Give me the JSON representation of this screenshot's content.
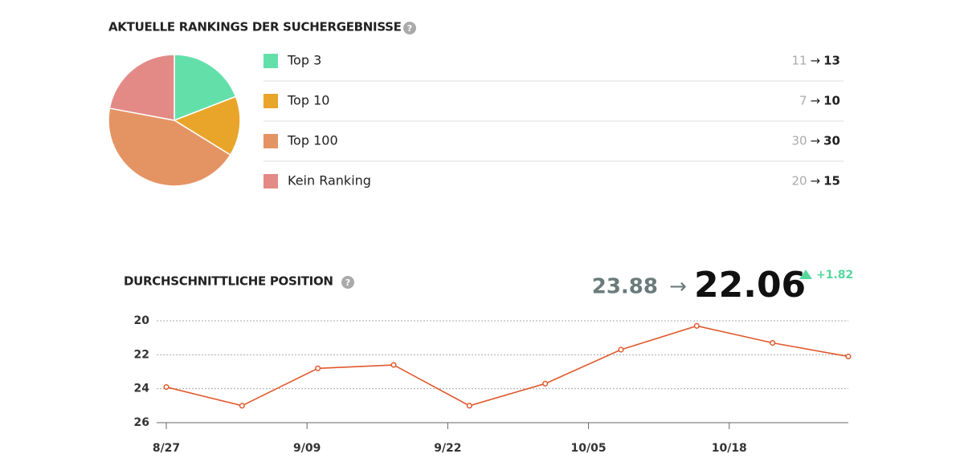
{
  "help_icon": "?",
  "arrow": "→",
  "chart_data": [
    {
      "type": "pie",
      "title": "AKTUELLE RANKINGS DER SUCHERGEBNISSE",
      "categories": [
        "Top 3",
        "Top 10",
        "Top 100",
        "Kein Ranking"
      ],
      "previous": [
        11,
        7,
        30,
        20
      ],
      "values": [
        13,
        10,
        30,
        15
      ],
      "colors": [
        "#63e0aa",
        "#e9a52a",
        "#e49463",
        "#e38a87"
      ]
    },
    {
      "type": "line",
      "title": "DURCHSCHNITTLICHE POSITION",
      "previous": 23.88,
      "current": 22.06,
      "change": "+1.82",
      "x": [
        "8/27",
        "9/03",
        "9/10",
        "9/17",
        "9/24",
        "10/01",
        "10/08",
        "10/15",
        "10/22",
        "10/29"
      ],
      "series": [
        {
          "color": "#e0582b",
          "values": [
            23.9,
            25.0,
            22.8,
            22.6,
            25.0,
            23.7,
            21.7,
            20.3,
            21.3,
            22.1
          ]
        }
      ],
      "xlim": [
        "8/27",
        "10/29"
      ],
      "xticks": [
        "8/27",
        "9/09",
        "9/22",
        "10/05",
        "10/18"
      ],
      "ylim": [
        26,
        20
      ],
      "yticks": [
        20,
        22,
        24,
        26
      ],
      "inverted": true,
      "grid": true
    }
  ]
}
